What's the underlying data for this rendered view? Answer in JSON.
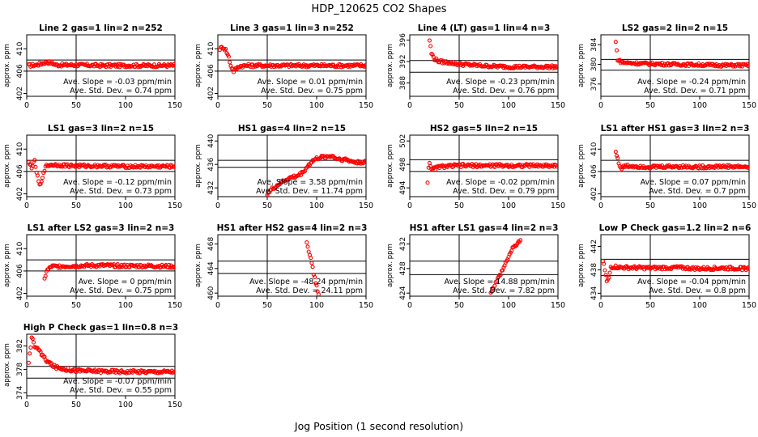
{
  "figure": {
    "title": "HDP_120625  CO2 Shapes",
    "xlabel": "Jog Position (1 second resolution)",
    "ylabel": "approx. ppm",
    "slope_prefix": "Ave. Slope =",
    "slope_unit": "ppm/min",
    "std_prefix": "Ave. Std. Dev. =",
    "std_unit": "ppm",
    "marker_color": "#ff0000",
    "line_color": "#000000",
    "vline_x": 50
  },
  "chart_data": [
    {
      "type": "scatter",
      "title": "Line 2 gas=1 lin=2 n=252",
      "xlim": [
        0,
        150
      ],
      "ylim": [
        401.5,
        412.5
      ],
      "x_ticks": [
        0,
        50,
        100,
        150
      ],
      "y_ticks": [
        402,
        406,
        410
      ],
      "hlines": [
        408.0,
        406.0
      ],
      "slope": "-0.03",
      "std": "0.74",
      "series": [
        {
          "x": [
            2,
            10,
            20,
            25,
            30,
            50,
            75,
            100,
            125,
            150
          ],
          "y": [
            407.0,
            407.1,
            407.6,
            407.5,
            407.1,
            407.1,
            407.0,
            407.0,
            407.0,
            407.0
          ]
        }
      ]
    },
    {
      "type": "scatter",
      "title": "Line 3 gas=1 lin=3 n=252",
      "xlim": [
        0,
        150
      ],
      "ylim": [
        401.5,
        412.5
      ],
      "x_ticks": [
        0,
        50,
        100,
        150
      ],
      "y_ticks": [
        402,
        406,
        410
      ],
      "hlines": [
        408.0,
        406.0
      ],
      "slope": "0.01",
      "std": "0.75",
      "series": [
        {
          "x": [
            2,
            5,
            8,
            11,
            13,
            16,
            19,
            22,
            30,
            50,
            75,
            100,
            125,
            150
          ],
          "y": [
            410.0,
            410.3,
            409.8,
            408.5,
            407.0,
            406.0,
            406.5,
            406.9,
            407.0,
            407.0,
            407.0,
            407.0,
            407.0,
            407.0
          ]
        }
      ]
    },
    {
      "type": "scatter",
      "title": "Line 4 (LT) gas=1 lin=4 n=3",
      "xlim": [
        0,
        150
      ],
      "ylim": [
        385.5,
        397
      ],
      "x_ticks": [
        0,
        50,
        100,
        150
      ],
      "y_ticks": [
        388,
        392,
        396
      ],
      "hlines": [
        392.2,
        390.0
      ],
      "slope": "-0.23",
      "std": "0.76",
      "series": [
        {
          "x": [
            20,
            22,
            25,
            30,
            40,
            50,
            75,
            100,
            125,
            150
          ],
          "y": [
            396.0,
            393.5,
            392.5,
            392.0,
            391.8,
            391.5,
            391.2,
            391.0,
            391.0,
            391.0
          ]
        }
      ]
    },
    {
      "type": "scatter",
      "title": "LS2 gas=2 lin=2 n=15",
      "xlim": [
        0,
        150
      ],
      "ylim": [
        373.5,
        386
      ],
      "x_ticks": [
        0,
        50,
        100,
        150
      ],
      "y_ticks": [
        376,
        380,
        384
      ],
      "hlines": [
        381.0,
        378.8
      ],
      "slope": "-0.24",
      "std": "0.71",
      "series": [
        {
          "x": [
            15,
            17,
            20,
            25,
            50,
            75,
            100,
            125,
            150
          ],
          "y": [
            384.5,
            381.0,
            380.5,
            380.3,
            380.1,
            380.0,
            379.9,
            379.8,
            379.8
          ]
        }
      ]
    },
    {
      "type": "scatter",
      "title": "LS1 gas=3 lin=2 n=15",
      "xlim": [
        0,
        150
      ],
      "ylim": [
        401.5,
        412.5
      ],
      "x_ticks": [
        0,
        50,
        100,
        150
      ],
      "y_ticks": [
        402,
        406,
        410
      ],
      "hlines": [
        408.0,
        406.0
      ],
      "slope": "-0.12",
      "std": "0.73",
      "series": [
        {
          "x": [
            2,
            5,
            8,
            11,
            13,
            15,
            17,
            20,
            25,
            50,
            75,
            100,
            125,
            150
          ],
          "y": [
            407.5,
            406.8,
            407.8,
            405.0,
            403.5,
            404.0,
            406.0,
            407.0,
            407.2,
            407.0,
            407.0,
            406.9,
            406.9,
            406.9
          ]
        }
      ]
    },
    {
      "type": "scatter",
      "title": "HS1 gas=4 lin=2 n=15",
      "xlim": [
        0,
        150
      ],
      "ylim": [
        430.5,
        441
      ],
      "x_ticks": [
        0,
        50,
        100,
        150
      ],
      "y_ticks": [
        432,
        436,
        440
      ],
      "hlines": [
        436.7,
        435.5
      ],
      "slope": "3.58",
      "std": "11.74",
      "series": [
        {
          "x": [
            50,
            55,
            60,
            65,
            70,
            75,
            80,
            85,
            90,
            95,
            100,
            105,
            110,
            115,
            120,
            130,
            140,
            150
          ],
          "y": [
            431.0,
            431.8,
            432.4,
            433.0,
            433.5,
            433.8,
            434.0,
            434.5,
            435.5,
            436.5,
            437.0,
            437.2,
            437.3,
            437.5,
            437.0,
            436.8,
            436.3,
            436.5
          ]
        }
      ]
    },
    {
      "type": "scatter",
      "title": "HS2 gas=5 lin=2 n=15",
      "xlim": [
        0,
        150
      ],
      "ylim": [
        492.5,
        503
      ],
      "x_ticks": [
        0,
        50,
        100,
        150
      ],
      "y_ticks": [
        494,
        498,
        502
      ],
      "hlines": [
        498.8,
        496.8
      ],
      "slope": "-0.02",
      "std": "0.79",
      "series": [
        {
          "x": [
            18,
            19,
            20,
            22,
            25,
            30,
            50,
            75,
            100,
            125,
            150
          ],
          "y": [
            495.0,
            497.5,
            498.5,
            497.0,
            497.3,
            497.6,
            497.8,
            497.8,
            497.8,
            497.8,
            497.8
          ]
        }
      ]
    },
    {
      "type": "scatter",
      "title": "LS1 after HS1 gas=3 lin=2 n=3",
      "xlim": [
        0,
        150
      ],
      "ylim": [
        401.5,
        412.5
      ],
      "x_ticks": [
        0,
        50,
        100,
        150
      ],
      "y_ticks": [
        402,
        406,
        410
      ],
      "hlines": [
        408.0,
        406.0
      ],
      "slope": "0.07",
      "std": "0.7",
      "series": [
        {
          "x": [
            15,
            20,
            25,
            50,
            75,
            100,
            125,
            150
          ],
          "y": [
            409.5,
            406.5,
            407.0,
            406.8,
            406.9,
            406.8,
            406.9,
            406.8
          ]
        }
      ]
    },
    {
      "type": "scatter",
      "title": "LS1 after LS2 gas=3 lin=2 n=3",
      "xlim": [
        0,
        150
      ],
      "ylim": [
        401.5,
        412.5
      ],
      "x_ticks": [
        0,
        50,
        100,
        150
      ],
      "y_ticks": [
        402,
        406,
        410
      ],
      "hlines": [
        408.0,
        406.0
      ],
      "slope": "0",
      "std": "0.75",
      "series": [
        {
          "x": [
            18,
            20,
            25,
            50,
            75,
            100,
            125,
            150
          ],
          "y": [
            404.5,
            406.0,
            406.8,
            406.9,
            407.0,
            406.9,
            406.9,
            406.8
          ]
        }
      ]
    },
    {
      "type": "scatter",
      "title": "HS1 after HS2 gas=4 lin=2 n=3",
      "xlim": [
        0,
        150
      ],
      "ylim": [
        459.5,
        469.5
      ],
      "x_ticks": [
        0,
        50,
        100,
        150
      ],
      "y_ticks": [
        460,
        464,
        468
      ],
      "hlines": [
        465.2,
        463.2
      ],
      "slope": "-48.24",
      "std": "24.11",
      "series": [
        {
          "x": [
            90,
            92,
            94,
            96,
            98,
            100,
            102
          ],
          "y": [
            468.5,
            467.0,
            465.5,
            464.0,
            462.5,
            461.0,
            459.8
          ]
        }
      ]
    },
    {
      "type": "scatter",
      "title": "HS1 after LS1 gas=4 lin=2 n=3",
      "xlim": [
        0,
        150
      ],
      "ylim": [
        423.5,
        433.5
      ],
      "x_ticks": [
        0,
        50,
        100,
        150
      ],
      "y_ticks": [
        424,
        428,
        432
      ],
      "hlines": [
        429.2,
        427.0
      ],
      "slope": "14.88",
      "std": "7.82",
      "series": [
        {
          "x": [
            82,
            85,
            88,
            92,
            96,
            100,
            104,
            108,
            112
          ],
          "y": [
            424.2,
            425.0,
            426.0,
            427.2,
            428.5,
            430.0,
            431.2,
            432.0,
            432.6
          ]
        }
      ]
    },
    {
      "type": "scatter",
      "title": "Low P Check gas=1.2 lin=2 n=6",
      "xlim": [
        0,
        150
      ],
      "ylim": [
        433.5,
        444
      ],
      "x_ticks": [
        0,
        50,
        100,
        150
      ],
      "y_ticks": [
        434,
        438,
        442
      ],
      "hlines": [
        439.8,
        437.0
      ],
      "slope": "-0.04",
      "std": "0.8",
      "series": [
        {
          "x": [
            2,
            4,
            6,
            8,
            10,
            15,
            20,
            50,
            75,
            100,
            125,
            150
          ],
          "y": [
            439.5,
            438.0,
            436.0,
            436.5,
            438.5,
            438.5,
            438.4,
            438.3,
            438.4,
            438.2,
            438.3,
            438.2
          ]
        }
      ]
    },
    {
      "type": "scatter",
      "title": "High P Check gas=1 lin=0.8 n=3",
      "xlim": [
        0,
        150
      ],
      "ylim": [
        373.5,
        384
      ],
      "x_ticks": [
        0,
        50,
        100,
        150
      ],
      "y_ticks": [
        374,
        378,
        382
      ],
      "hlines": [
        378.5,
        376.5
      ],
      "slope": "-0.07",
      "std": "0.55",
      "series": [
        {
          "x": [
            2,
            5,
            8,
            12,
            15,
            20,
            25,
            30,
            40,
            50,
            75,
            100,
            125,
            150
          ],
          "y": [
            379.0,
            383.5,
            382.0,
            381.5,
            380.5,
            379.5,
            378.8,
            378.3,
            378.0,
            377.8,
            377.7,
            377.6,
            377.6,
            377.6
          ]
        }
      ]
    }
  ]
}
